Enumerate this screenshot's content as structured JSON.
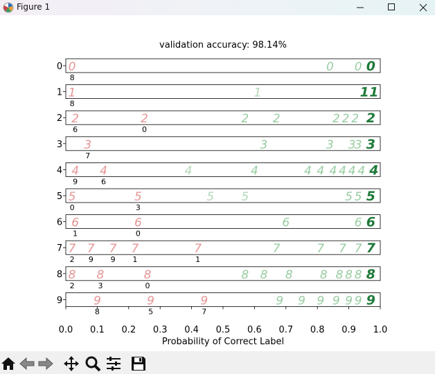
{
  "window": {
    "title": "Figure 1"
  },
  "chart_data": {
    "type": "scatter",
    "title": "validation accuracy: 98.14%",
    "xlabel": "Probability of Correct Label",
    "ylabel": "",
    "xlim": [
      0.0,
      1.0
    ],
    "xticks": [
      "0.0",
      "0.1",
      "0.2",
      "0.3",
      "0.4",
      "0.5",
      "0.6",
      "0.7",
      "0.8",
      "0.9",
      "1.0"
    ],
    "rows": [
      {
        "label": "0",
        "samples": [
          {
            "p": 0.02,
            "glyph": "0",
            "color": "#e07a7a",
            "tag": "8"
          },
          {
            "p": 0.84,
            "glyph": "0",
            "color": "#7dbf8a"
          },
          {
            "p": 0.93,
            "glyph": "0",
            "color": "#7dbf8a"
          },
          {
            "p": 0.97,
            "glyph": "0",
            "color": "#1f7a3a"
          }
        ]
      },
      {
        "label": "1",
        "samples": [
          {
            "p": 0.02,
            "glyph": "1",
            "color": "#e07a7a",
            "tag": "8"
          },
          {
            "p": 0.61,
            "glyph": "1",
            "color": "#9fd0a8"
          },
          {
            "p": 0.95,
            "glyph": "1",
            "color": "#1f7a3a"
          },
          {
            "p": 0.98,
            "glyph": "1",
            "color": "#1f7a3a"
          }
        ]
      },
      {
        "label": "2",
        "samples": [
          {
            "p": 0.03,
            "glyph": "2",
            "color": "#e07a7a",
            "tag": "6"
          },
          {
            "p": 0.25,
            "glyph": "2",
            "color": "#e07a7a",
            "tag": "0"
          },
          {
            "p": 0.57,
            "glyph": "2",
            "color": "#7dbf8a"
          },
          {
            "p": 0.67,
            "glyph": "2",
            "color": "#7dbf8a"
          },
          {
            "p": 0.86,
            "glyph": "2",
            "color": "#7dbf8a"
          },
          {
            "p": 0.89,
            "glyph": "2",
            "color": "#7dbf8a"
          },
          {
            "p": 0.92,
            "glyph": "2",
            "color": "#7dbf8a"
          },
          {
            "p": 0.97,
            "glyph": "2",
            "color": "#1f7a3a"
          }
        ]
      },
      {
        "label": "3",
        "samples": [
          {
            "p": 0.07,
            "glyph": "3",
            "color": "#e07a7a",
            "tag": "7"
          },
          {
            "p": 0.63,
            "glyph": "3",
            "color": "#7dbf8a"
          },
          {
            "p": 0.84,
            "glyph": "3",
            "color": "#7dbf8a"
          },
          {
            "p": 0.91,
            "glyph": "3",
            "color": "#7dbf8a"
          },
          {
            "p": 0.93,
            "glyph": "3",
            "color": "#7dbf8a"
          },
          {
            "p": 0.97,
            "glyph": "3",
            "color": "#1f7a3a"
          }
        ]
      },
      {
        "label": "4",
        "samples": [
          {
            "p": 0.03,
            "glyph": "4",
            "color": "#e07a7a",
            "tag": "9"
          },
          {
            "p": 0.12,
            "glyph": "4",
            "color": "#e07a7a",
            "tag": "6"
          },
          {
            "p": 0.39,
            "glyph": "4",
            "color": "#9fd0a8"
          },
          {
            "p": 0.6,
            "glyph": "4",
            "color": "#7dbf8a"
          },
          {
            "p": 0.77,
            "glyph": "4",
            "color": "#7dbf8a"
          },
          {
            "p": 0.81,
            "glyph": "4",
            "color": "#7dbf8a"
          },
          {
            "p": 0.85,
            "glyph": "4",
            "color": "#7dbf8a"
          },
          {
            "p": 0.88,
            "glyph": "4",
            "color": "#7dbf8a"
          },
          {
            "p": 0.91,
            "glyph": "4",
            "color": "#7dbf8a"
          },
          {
            "p": 0.94,
            "glyph": "4",
            "color": "#7dbf8a"
          },
          {
            "p": 0.98,
            "glyph": "4",
            "color": "#1f7a3a"
          }
        ]
      },
      {
        "label": "5",
        "samples": [
          {
            "p": 0.02,
            "glyph": "5",
            "color": "#e07a7a",
            "tag": "0"
          },
          {
            "p": 0.23,
            "glyph": "5",
            "color": "#e07a7a",
            "tag": "3"
          },
          {
            "p": 0.46,
            "glyph": "5",
            "color": "#9fd0a8"
          },
          {
            "p": 0.57,
            "glyph": "5",
            "color": "#9fd0a8"
          },
          {
            "p": 0.9,
            "glyph": "5",
            "color": "#7dbf8a"
          },
          {
            "p": 0.93,
            "glyph": "5",
            "color": "#7dbf8a"
          },
          {
            "p": 0.97,
            "glyph": "5",
            "color": "#1f7a3a"
          }
        ]
      },
      {
        "label": "6",
        "samples": [
          {
            "p": 0.03,
            "glyph": "6",
            "color": "#e07a7a",
            "tag": "1"
          },
          {
            "p": 0.23,
            "glyph": "6",
            "color": "#e07a7a",
            "tag": "0"
          },
          {
            "p": 0.7,
            "glyph": "6",
            "color": "#7dbf8a"
          },
          {
            "p": 0.93,
            "glyph": "6",
            "color": "#7dbf8a"
          },
          {
            "p": 0.97,
            "glyph": "6",
            "color": "#1f7a3a"
          }
        ]
      },
      {
        "label": "7",
        "samples": [
          {
            "p": 0.02,
            "glyph": "7",
            "color": "#e07a7a",
            "tag": "2"
          },
          {
            "p": 0.08,
            "glyph": "7",
            "color": "#e07a7a",
            "tag": "9"
          },
          {
            "p": 0.15,
            "glyph": "7",
            "color": "#e07a7a",
            "tag": "9"
          },
          {
            "p": 0.22,
            "glyph": "7",
            "color": "#e07a7a",
            "tag": "1"
          },
          {
            "p": 0.42,
            "glyph": "7",
            "color": "#e07a7a",
            "tag": "1"
          },
          {
            "p": 0.67,
            "glyph": "7",
            "color": "#7dbf8a"
          },
          {
            "p": 0.81,
            "glyph": "7",
            "color": "#7dbf8a"
          },
          {
            "p": 0.88,
            "glyph": "7",
            "color": "#7dbf8a"
          },
          {
            "p": 0.93,
            "glyph": "7",
            "color": "#7dbf8a"
          },
          {
            "p": 0.97,
            "glyph": "7",
            "color": "#1f7a3a"
          }
        ]
      },
      {
        "label": "8",
        "samples": [
          {
            "p": 0.02,
            "glyph": "8",
            "color": "#e07a7a",
            "tag": "2"
          },
          {
            "p": 0.11,
            "glyph": "8",
            "color": "#e07a7a",
            "tag": "3"
          },
          {
            "p": 0.26,
            "glyph": "8",
            "color": "#e07a7a",
            "tag": "0"
          },
          {
            "p": 0.57,
            "glyph": "8",
            "color": "#7dbf8a"
          },
          {
            "p": 0.63,
            "glyph": "8",
            "color": "#7dbf8a"
          },
          {
            "p": 0.71,
            "glyph": "8",
            "color": "#7dbf8a"
          },
          {
            "p": 0.82,
            "glyph": "8",
            "color": "#7dbf8a"
          },
          {
            "p": 0.87,
            "glyph": "8",
            "color": "#7dbf8a"
          },
          {
            "p": 0.9,
            "glyph": "8",
            "color": "#7dbf8a"
          },
          {
            "p": 0.93,
            "glyph": "8",
            "color": "#7dbf8a"
          },
          {
            "p": 0.97,
            "glyph": "8",
            "color": "#1f7a3a"
          }
        ]
      },
      {
        "label": "9",
        "samples": [
          {
            "p": 0.1,
            "glyph": "9",
            "color": "#e07a7a",
            "tag": "8"
          },
          {
            "p": 0.27,
            "glyph": "9",
            "color": "#e07a7a",
            "tag": "5"
          },
          {
            "p": 0.44,
            "glyph": "9",
            "color": "#e07a7a",
            "tag": "7"
          },
          {
            "p": 0.68,
            "glyph": "9",
            "color": "#7dbf8a"
          },
          {
            "p": 0.75,
            "glyph": "9",
            "color": "#7dbf8a"
          },
          {
            "p": 0.81,
            "glyph": "9",
            "color": "#7dbf8a"
          },
          {
            "p": 0.86,
            "glyph": "9",
            "color": "#7dbf8a"
          },
          {
            "p": 0.9,
            "glyph": "9",
            "color": "#7dbf8a"
          },
          {
            "p": 0.93,
            "glyph": "9",
            "color": "#7dbf8a"
          },
          {
            "p": 0.97,
            "glyph": "9",
            "color": "#1f7a3a"
          }
        ]
      }
    ]
  },
  "toolbar": {
    "buttons": [
      {
        "name": "home-icon"
      },
      {
        "name": "back-arrow-icon"
      },
      {
        "name": "forward-arrow-icon"
      },
      {
        "name": "pan-icon"
      },
      {
        "name": "zoom-icon"
      },
      {
        "name": "configure-subplots-icon"
      },
      {
        "name": "save-icon"
      }
    ]
  }
}
